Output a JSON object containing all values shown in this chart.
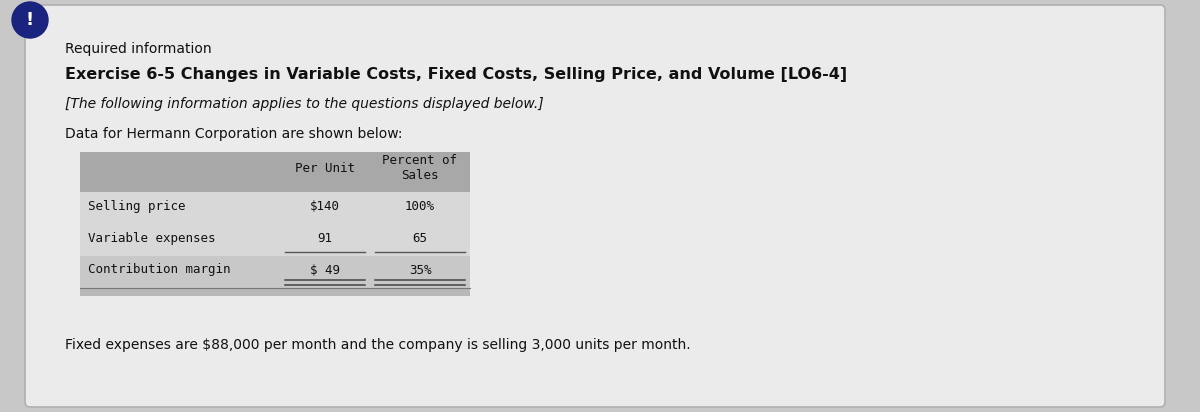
{
  "required_info_label": "Required information",
  "title": "Exercise 6-5 Changes in Variable Costs, Fixed Costs, Selling Price, and Volume [LO6-4]",
  "subtitle": "[The following information applies to the questions displayed below.]",
  "intro_text": "Data for Hermann Corporation are shown below:",
  "table_header_col2": "Per Unit",
  "table_header_col3": "Percent of\nSales",
  "table_rows": [
    [
      "Selling price",
      "$140",
      "100%"
    ],
    [
      "Variable expenses",
      "91",
      "65"
    ],
    [
      "Contribution margin",
      "$ 49",
      "35%"
    ]
  ],
  "footer_text": "Fixed expenses are $88,000 per month and the company is selling 3,000 units per month.",
  "outer_bg_color": "#c8c8c8",
  "card_color": "#ebebeb",
  "table_header_bg": "#a8a8a8",
  "table_row1_bg": "#d8d8d8",
  "table_row2_bg": "#d8d8d8",
  "table_row3_bg": "#c8c8c8",
  "table_bottom_bar_bg": "#b8b8b8",
  "icon_color": "#1a237e",
  "icon_text_color": "#ffffff",
  "border_color": "#b0b0b0",
  "text_dark": "#111111",
  "text_medium": "#333333"
}
